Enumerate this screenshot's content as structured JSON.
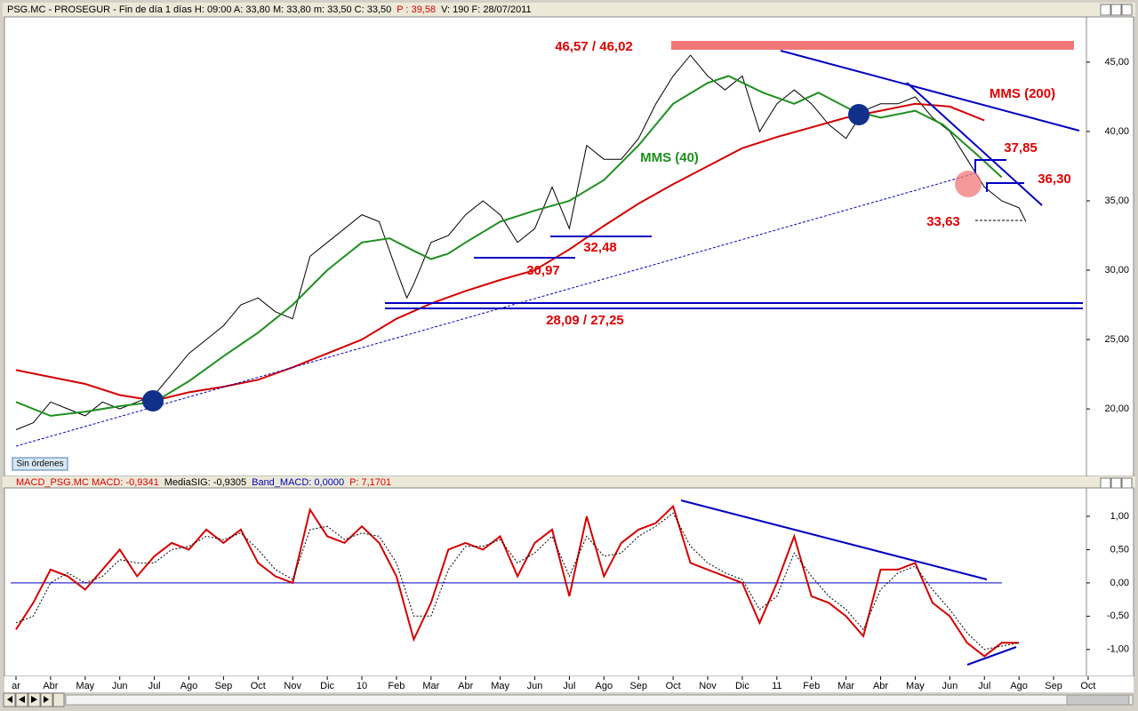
{
  "header": {
    "parts": [
      "PSG.MC - PROSEGUR - Fin de día 1 días  H: 09:00  A: 33,80  M: 33,80  m: 33,50  C: 33,50",
      "P : 39,58",
      "V: 190  F: 28/07/2011"
    ]
  },
  "macd_header": {
    "parts": [
      "MACD_PSG.MC  MACD: -0,9341",
      "MediaSIG: -0,9305",
      "Band_MACD: 0,0000",
      "P: 7,1701"
    ]
  },
  "button": "Sin órdenes",
  "chart_data": [
    {
      "type": "line",
      "annotations": [
        "46,57 / 46,02",
        "37,85",
        "36,30",
        "33,63",
        "32,48",
        "30,97",
        "28,09 / 27,25"
      ],
      "xlim": [
        -0.257,
        30.95
      ],
      "ylim": [
        15.2,
        48.2
      ],
      "yticks": [
        {
          "value": 20,
          "label": "20,00"
        },
        {
          "value": 25,
          "label": "25,00"
        },
        {
          "value": 30,
          "label": "30,00"
        },
        {
          "value": 35,
          "label": "35,00"
        },
        {
          "value": 40,
          "label": "40,00"
        },
        {
          "value": 45,
          "label": "45,00"
        }
      ],
      "series": [
        {
          "color": "#000000",
          "x": [
            0,
            0.5,
            1,
            1.5,
            2,
            2.5,
            3,
            3.5,
            4,
            4.5,
            5,
            5.5,
            6,
            6.5,
            7,
            7.5,
            8,
            8.5,
            9,
            9.5,
            10,
            10.5,
            11,
            11.3,
            11.5,
            12,
            12.5,
            13,
            13.5,
            14,
            14.5,
            15,
            15.5,
            16,
            16.5,
            17,
            17.5,
            18,
            18.5,
            19,
            19.5,
            20,
            20.5,
            21,
            21.5,
            22,
            22.5,
            23,
            23.5,
            24,
            24.5,
            25,
            25.5,
            26,
            26.5,
            27,
            27.5,
            28,
            28.5,
            29,
            29.2
          ],
          "values": [
            18.5,
            19,
            20.5,
            20,
            19.5,
            20.5,
            20,
            20.5,
            21,
            22.5,
            24,
            25,
            26,
            27.5,
            28,
            27,
            26.5,
            31,
            32,
            33,
            34,
            33.5,
            30,
            28,
            29,
            32,
            32.5,
            34,
            35,
            34,
            32,
            33,
            36,
            33,
            39,
            38,
            38,
            39.5,
            42,
            44,
            45.5,
            44,
            43,
            44,
            40,
            42,
            43,
            42,
            40.5,
            39.5,
            41.5,
            42,
            42,
            42.5,
            41,
            40,
            38,
            36,
            35,
            34.5,
            33.5
          ]
        },
        {
          "name": "MMS (40)",
          "color": "#1f8f1f",
          "x": [
            0,
            1,
            2,
            3,
            4,
            5,
            6,
            7,
            8,
            9,
            10,
            10.8,
            11.5,
            12,
            12.5,
            13,
            14,
            15,
            16,
            17,
            18,
            19,
            20,
            20.6,
            21.6,
            22.5,
            23.2,
            24.2,
            25,
            26,
            26.8,
            27.8,
            28.5
          ],
          "values": [
            20.5,
            19.5,
            19.8,
            20.2,
            20.5,
            22,
            23.8,
            25.5,
            27.5,
            30,
            32,
            32.3,
            31.4,
            30.8,
            31.2,
            32,
            33.5,
            34.3,
            35,
            36.5,
            39,
            42,
            43.5,
            44,
            42.8,
            42,
            42.8,
            41.5,
            41,
            41.5,
            40.5,
            38.3,
            36.7
          ]
        },
        {
          "name": "MMS (200)",
          "color": "#d40000",
          "x": [
            0,
            2,
            3,
            4,
            5,
            6,
            7,
            8,
            9,
            10,
            11,
            12,
            13,
            14,
            15,
            16,
            17,
            18,
            19,
            20,
            21,
            22,
            23,
            24,
            25,
            26,
            27,
            28
          ],
          "values": [
            22.8,
            21.8,
            21,
            20.6,
            21.2,
            21.6,
            22.1,
            23,
            24,
            25,
            26.5,
            27.6,
            28.5,
            29.3,
            30,
            31.5,
            33.2,
            34.8,
            36.2,
            37.5,
            38.8,
            39.6,
            40.3,
            41,
            41.5,
            42,
            41.8,
            40.8
          ]
        }
      ]
    },
    {
      "type": "line",
      "xlim": [
        -0.257,
        30.95
      ],
      "ylim": [
        -1.39,
        1.44
      ],
      "xticks": [
        {
          "value": 0,
          "label": "ar"
        },
        {
          "value": 1,
          "label": "Abr"
        },
        {
          "value": 2,
          "label": "May"
        },
        {
          "value": 3,
          "label": "Jun"
        },
        {
          "value": 4,
          "label": "Jul"
        },
        {
          "value": 5,
          "label": "Ago"
        },
        {
          "value": 6,
          "label": "Sep"
        },
        {
          "value": 7,
          "label": "Oct"
        },
        {
          "value": 8,
          "label": "Nov"
        },
        {
          "value": 9,
          "label": "Dic"
        },
        {
          "value": 10,
          "label": "10"
        },
        {
          "value": 11,
          "label": "Feb"
        },
        {
          "value": 12,
          "label": "Mar"
        },
        {
          "value": 13,
          "label": "Abr"
        },
        {
          "value": 14,
          "label": "May"
        },
        {
          "value": 15,
          "label": "Jun"
        },
        {
          "value": 16,
          "label": "Jul"
        },
        {
          "value": 17,
          "label": "Ago"
        },
        {
          "value": 18,
          "label": "Sep"
        },
        {
          "value": 19,
          "label": "Oct"
        },
        {
          "value": 20,
          "label": "Nov"
        },
        {
          "value": 21,
          "label": "Dic"
        },
        {
          "value": 22,
          "label": "11"
        },
        {
          "value": 23,
          "label": "Feb"
        },
        {
          "value": 24,
          "label": "Mar"
        },
        {
          "value": 25,
          "label": "Abr"
        },
        {
          "value": 26,
          "label": "May"
        },
        {
          "value": 27,
          "label": "Jun"
        },
        {
          "value": 28,
          "label": "Jul"
        },
        {
          "value": 29,
          "label": "Ago"
        },
        {
          "value": 30,
          "label": "Sep"
        },
        {
          "value": 31,
          "label": "Oct"
        }
      ],
      "yticks": [
        {
          "value": 1,
          "label": "1,00"
        },
        {
          "value": 0.5,
          "label": "0,50"
        },
        {
          "value": 0,
          "label": "0,00"
        },
        {
          "value": -0.5,
          "label": "-0,50"
        },
        {
          "value": -1,
          "label": "-1,00"
        }
      ],
      "series": [
        {
          "color": "#d40000",
          "x": [
            0,
            0.5,
            1,
            1.5,
            2,
            2.5,
            3,
            3.5,
            4,
            4.5,
            5,
            5.5,
            6,
            6.5,
            7,
            7.5,
            8,
            8.5,
            9,
            9.5,
            10,
            10.5,
            11,
            11.5,
            12,
            12.5,
            13,
            13.5,
            14,
            14.5,
            15,
            15.5,
            16,
            16.5,
            17,
            17.5,
            18,
            18.5,
            19,
            19.5,
            20,
            20.5,
            21,
            21.5,
            22,
            22.5,
            23,
            23.5,
            24,
            24.5,
            25,
            25.5,
            26,
            26.5,
            27,
            27.5,
            28,
            28.5,
            29
          ],
          "values": [
            -0.7,
            -0.3,
            0.2,
            0.1,
            -0.1,
            0.2,
            0.5,
            0.1,
            0.4,
            0.6,
            0.5,
            0.8,
            0.6,
            0.8,
            0.3,
            0.1,
            0,
            1.1,
            0.7,
            0.6,
            0.85,
            0.6,
            0.1,
            -0.85,
            -0.3,
            0.5,
            0.6,
            0.5,
            0.7,
            0.1,
            0.6,
            0.8,
            -0.2,
            1.0,
            0.1,
            0.6,
            0.8,
            0.9,
            1.15,
            0.3,
            0.2,
            0.1,
            0,
            -0.6,
            0,
            0.7,
            -0.2,
            -0.3,
            -0.5,
            -0.8,
            0.2,
            0.2,
            0.3,
            -0.3,
            -0.5,
            -0.9,
            -1.1,
            -0.9,
            -0.9
          ]
        },
        {
          "color": "#000000",
          "dashed": true,
          "x": [
            0,
            0.5,
            1,
            1.5,
            2,
            2.5,
            3,
            3.5,
            4,
            4.5,
            5,
            5.5,
            6,
            6.5,
            7,
            7.5,
            8,
            8.5,
            9,
            9.5,
            10,
            10.5,
            11,
            11.5,
            12,
            12.5,
            13,
            13.5,
            14,
            14.5,
            15,
            15.5,
            16,
            16.5,
            17,
            17.5,
            18,
            18.5,
            19,
            19.5,
            20,
            20.5,
            21,
            21.5,
            22,
            22.5,
            23,
            23.5,
            24,
            24.5,
            25,
            25.5,
            26,
            26.5,
            27,
            27.5,
            28,
            28.5,
            29
          ],
          "values": [
            -0.6,
            -0.5,
            0,
            0.15,
            0,
            0.1,
            0.35,
            0.3,
            0.3,
            0.5,
            0.55,
            0.7,
            0.65,
            0.75,
            0.5,
            0.2,
            0.05,
            0.8,
            0.85,
            0.65,
            0.75,
            0.7,
            0.3,
            -0.5,
            -0.5,
            0.2,
            0.55,
            0.55,
            0.65,
            0.3,
            0.45,
            0.7,
            0.1,
            0.7,
            0.4,
            0.45,
            0.7,
            0.85,
            1.05,
            0.55,
            0.3,
            0.15,
            0.05,
            -0.4,
            -0.2,
            0.45,
            0.1,
            -0.2,
            -0.4,
            -0.7,
            -0.1,
            0.15,
            0.25,
            -0.1,
            -0.4,
            -0.75,
            -1.0,
            -0.95,
            -0.9
          ]
        }
      ]
    }
  ]
}
